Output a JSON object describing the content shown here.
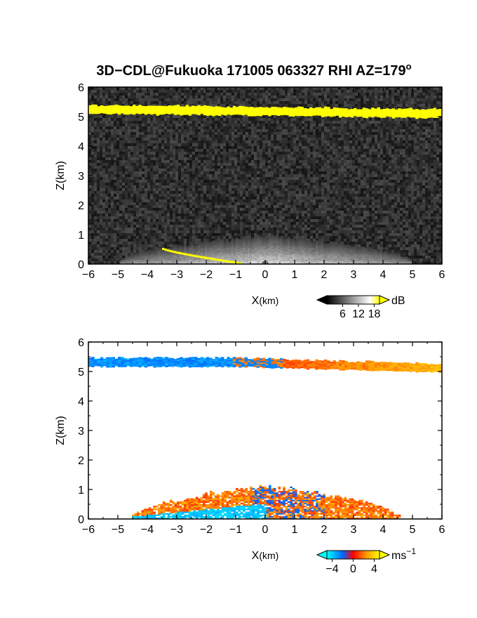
{
  "chart_data": [
    {
      "type": "heatmap",
      "title": "3D−CDL@Fukuoka 171005 063327 RHI AZ=179",
      "title_superscript": "o",
      "xlabel": "X",
      "xlabel_unit": "(km)",
      "ylabel": "Z(km)",
      "xlim": [
        -6,
        6
      ],
      "ylim": [
        0,
        6
      ],
      "x_ticks": [
        "−6",
        "−5",
        "−4",
        "−3",
        "−2",
        "−1",
        "0",
        "1",
        "2",
        "3",
        "4",
        "5",
        "6"
      ],
      "y_ticks": [
        "0",
        "1",
        "2",
        "3",
        "4",
        "5",
        "6"
      ],
      "colorbar": {
        "unit": "dB",
        "ticks": [
          "6",
          "12",
          "18"
        ],
        "tick_values": [
          6,
          12,
          18
        ],
        "range": [
          0,
          20
        ],
        "colors": [
          "#000000",
          "#ffffff",
          "#ffff00"
        ]
      },
      "features": [
        {
          "label": "cloud base layer (yellow)",
          "x_range": [
            -6,
            6
          ],
          "z_start": 5.25,
          "z_end": 5.1,
          "thickness_km": 0.3
        },
        {
          "label": "near-surface aerosol echo",
          "x_range": [
            -5,
            5
          ],
          "z_max": 1.0
        },
        {
          "label": "ground return (yellow)",
          "x_range": [
            -3.5,
            -0.8
          ],
          "z_start": 0.5,
          "z_end": 0.0
        }
      ]
    },
    {
      "type": "heatmap",
      "xlabel": "X",
      "xlabel_unit": "(km)",
      "ylabel": "Z(km)",
      "xlim": [
        -6,
        6
      ],
      "ylim": [
        0,
        6
      ],
      "x_ticks": [
        "−6",
        "−5",
        "−4",
        "−3",
        "−2",
        "−1",
        "0",
        "1",
        "2",
        "3",
        "4",
        "5",
        "6"
      ],
      "y_ticks": [
        "0",
        "1",
        "2",
        "3",
        "4",
        "5",
        "6"
      ],
      "colorbar": {
        "unit": "ms",
        "unit_superscript": "−1",
        "ticks": [
          "−4",
          "0",
          "4"
        ],
        "tick_values": [
          -4,
          0,
          4
        ],
        "range": [
          -5,
          5
        ],
        "colors": [
          "#00ffff",
          "#0066ff",
          "#ff0000",
          "#ff9900",
          "#ffff00"
        ]
      },
      "features": [
        {
          "label": "cloud layer approaching (blue)",
          "x_range": [
            -6,
            -1
          ],
          "z": 5.3,
          "velocity": -2.5
        },
        {
          "label": "cloud layer receding (red/orange)",
          "x_range": [
            -1,
            6
          ],
          "z_start": 5.3,
          "z_end": 5.1,
          "velocity": 2.5
        },
        {
          "label": "boundary layer mixed velocities",
          "x_range": [
            -4.5,
            4.5
          ],
          "z_max": 1.2
        }
      ]
    }
  ]
}
